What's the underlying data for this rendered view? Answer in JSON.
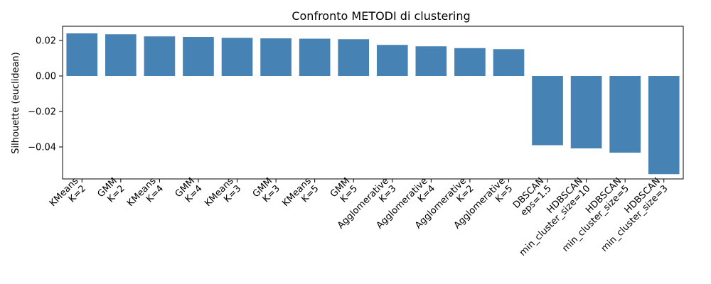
{
  "chart_data": {
    "type": "bar",
    "title": "Confronto METODI di clustering",
    "xlabel": "",
    "ylabel": "Silhouette (euclidean)",
    "ylim": [
      -0.058,
      0.028
    ],
    "yticks": [
      "0.02",
      "0.00",
      "−0.02",
      "−0.04"
    ],
    "ytick_values": [
      0.02,
      0.0,
      -0.02,
      -0.04
    ],
    "bar_color": "#4682b4",
    "grid": false,
    "categories": [
      [
        "KMeans",
        "K=2"
      ],
      [
        "GMM",
        "K=2"
      ],
      [
        "KMeans",
        "K=4"
      ],
      [
        "GMM",
        "K=4"
      ],
      [
        "KMeans",
        "K=3"
      ],
      [
        "GMM",
        "K=3"
      ],
      [
        "KMeans",
        "K=5"
      ],
      [
        "GMM",
        "K=5"
      ],
      [
        "Agglomerative",
        "K=3"
      ],
      [
        "Agglomerative",
        "K=4"
      ],
      [
        "Agglomerative",
        "K=2"
      ],
      [
        "Agglomerative",
        "K=5"
      ],
      [
        "DBSCAN",
        "eps=1.5"
      ],
      [
        "HDBSCAN",
        "min_cluster_size=10"
      ],
      [
        "HDBSCAN",
        "min_cluster_size=5"
      ],
      [
        "HDBSCAN",
        "min_cluster_size=3"
      ]
    ],
    "values": [
      0.024,
      0.0235,
      0.0223,
      0.022,
      0.0215,
      0.0212,
      0.021,
      0.0207,
      0.0175,
      0.0167,
      0.0157,
      0.0151,
      -0.039,
      -0.0408,
      -0.0432,
      -0.0553
    ]
  }
}
